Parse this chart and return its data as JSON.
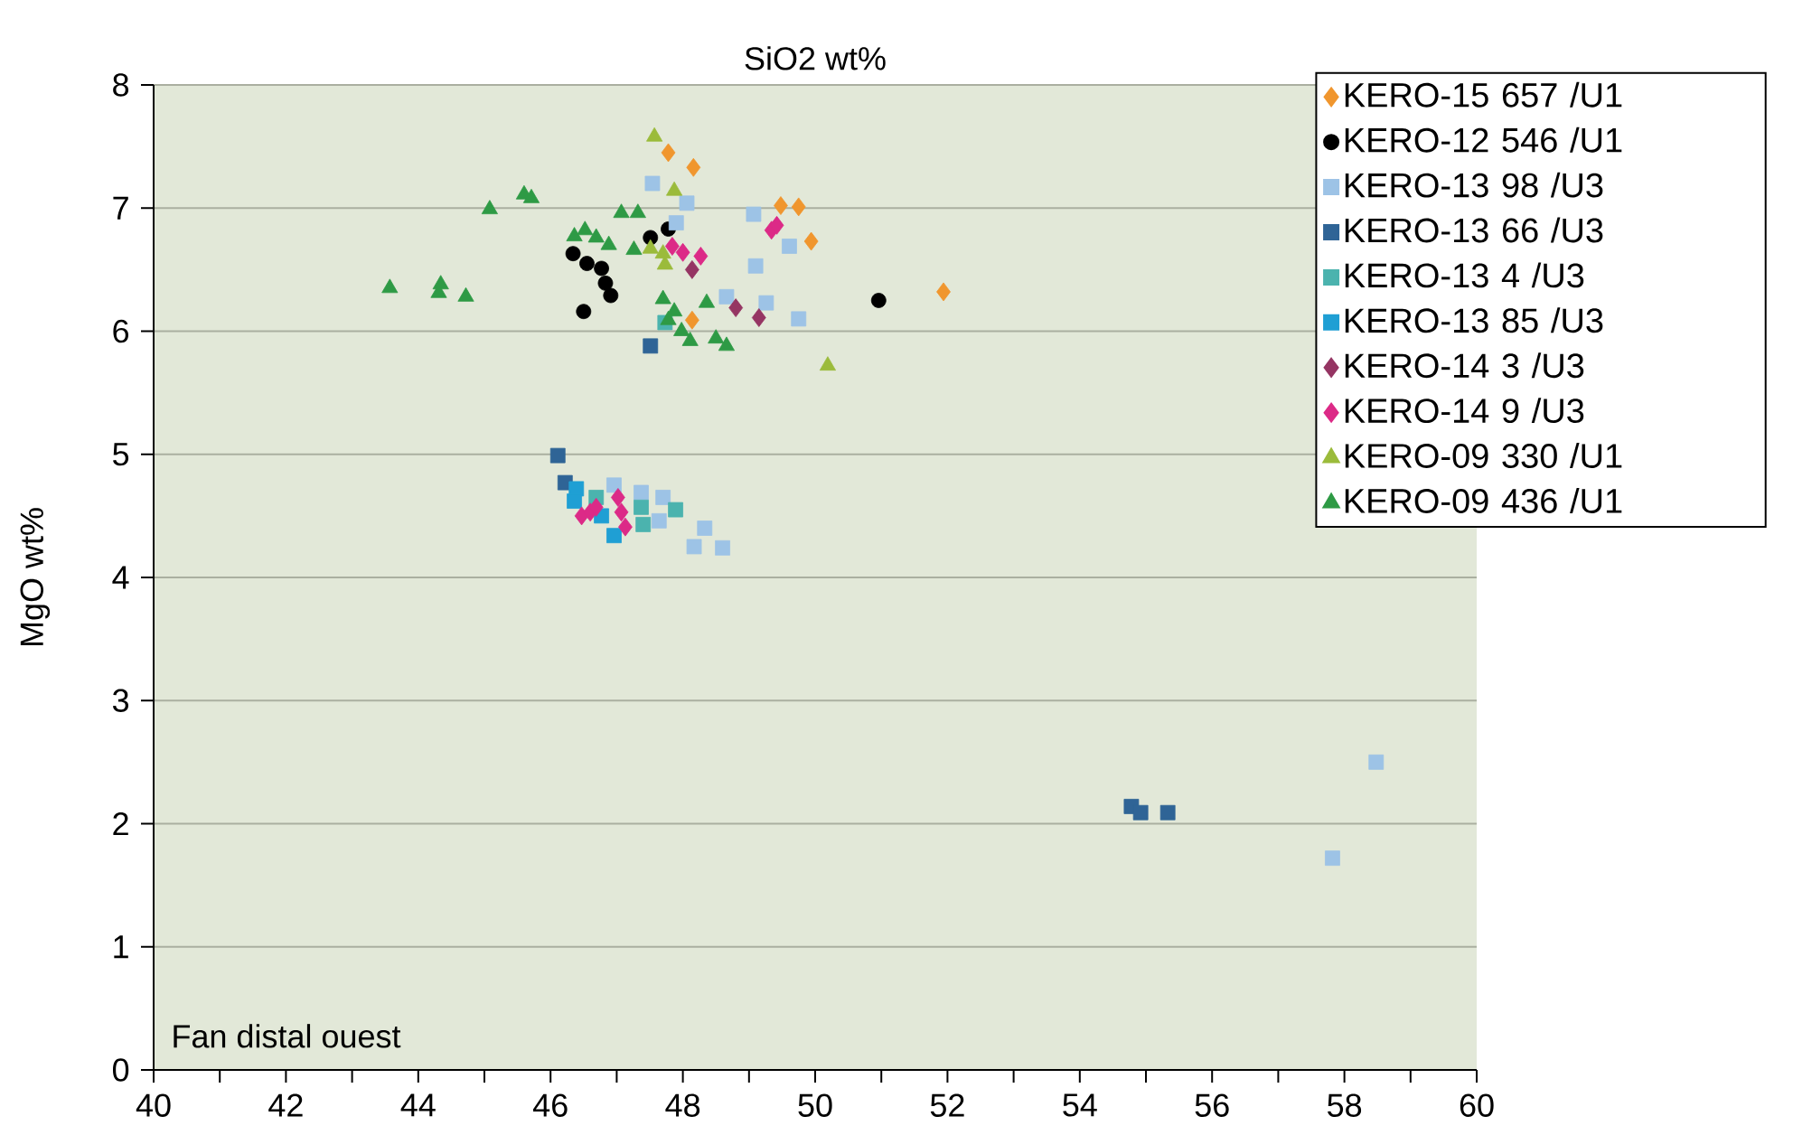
{
  "chart_data": {
    "type": "scatter",
    "xlabel": "SiO2 wt%",
    "ylabel": "MgO wt%",
    "annotations": [
      "Fan distal ouest"
    ],
    "xlim": [
      40,
      60
    ],
    "ylim": [
      0,
      8
    ],
    "xticks": [
      40,
      {
        "value": 41,
        "label": null
      },
      42,
      {
        "value": 43,
        "label": null
      },
      44,
      {
        "value": 45,
        "label": null
      },
      46,
      {
        "value": 47,
        "label": null
      },
      48,
      {
        "value": 49,
        "label": null
      },
      50,
      {
        "value": 51,
        "label": null
      },
      52,
      {
        "value": 53,
        "label": null
      },
      54,
      {
        "value": 55,
        "label": null
      },
      56,
      {
        "value": 57,
        "label": null
      },
      58,
      {
        "value": 59,
        "label": null
      },
      60
    ],
    "yticks": [
      0,
      1,
      2,
      3,
      4,
      5,
      6,
      7,
      8
    ],
    "grid": "y",
    "legend": "top right",
    "series": [
      {
        "name": "KERO-15 657 /U1",
        "color": "#f0962e",
        "marker": "diamond",
        "x": [
          47.78,
          48.16,
          49.48,
          49.75,
          49.94,
          51.94,
          48.14
        ],
        "values": [
          7.45,
          7.33,
          7.02,
          7.01,
          6.73,
          6.32,
          6.09
        ]
      },
      {
        "name": "KERO-12 546 /U1",
        "color": "#000000",
        "marker": "circle",
        "x": [
          46.34,
          46.55,
          46.77,
          46.83,
          46.91,
          46.5,
          47.51,
          47.78,
          50.96
        ],
        "values": [
          6.63,
          6.55,
          6.51,
          6.39,
          6.29,
          6.16,
          6.76,
          6.83,
          6.25
        ]
      },
      {
        "name": "KERO-13 98 /U3",
        "color": "#9dc3e6",
        "marker": "square",
        "x": [
          47.54,
          48.06,
          47.9,
          49.07,
          49.61,
          49.1,
          48.66,
          49.26,
          49.75,
          46.96,
          47.37,
          47.7,
          47.64,
          48.33,
          48.17,
          48.6,
          57.82,
          58.48
        ],
        "values": [
          7.2,
          7.04,
          6.88,
          6.95,
          6.69,
          6.53,
          6.28,
          6.23,
          6.1,
          4.75,
          4.69,
          4.65,
          4.46,
          4.4,
          4.25,
          4.24,
          1.72,
          2.5
        ]
      },
      {
        "name": "KERO-13 66 /U3",
        "color": "#2f6496",
        "marker": "square",
        "x": [
          47.51,
          46.11,
          46.22,
          54.78,
          54.92,
          55.33
        ],
        "values": [
          5.88,
          4.99,
          4.77,
          2.14,
          2.09,
          2.09
        ]
      },
      {
        "name": "KERO-13 4 /U3",
        "color": "#4bb3ae",
        "marker": "square",
        "x": [
          46.69,
          47.37,
          47.4,
          47.89,
          47.73
        ],
        "values": [
          4.65,
          4.57,
          4.43,
          4.55,
          6.07
        ]
      },
      {
        "name": "KERO-13 85 /U3",
        "color": "#1f9fd4",
        "marker": "square",
        "x": [
          46.39,
          46.36,
          46.77,
          46.96
        ],
        "values": [
          4.72,
          4.62,
          4.5,
          4.34
        ]
      },
      {
        "name": "KERO-14 3 /U3",
        "color": "#953563",
        "marker": "diamond",
        "x": [
          48.14,
          48.8,
          49.15
        ],
        "values": [
          6.5,
          6.19,
          6.11
        ]
      },
      {
        "name": "KERO-14 9 /U3",
        "color": "#dc2a87",
        "marker": "diamond",
        "x": [
          46.47,
          46.6,
          46.69,
          47.02,
          47.07,
          47.13,
          47.84,
          48.0,
          48.27,
          49.34,
          49.42
        ],
        "values": [
          4.5,
          4.53,
          4.57,
          4.65,
          4.53,
          4.41,
          6.69,
          6.64,
          6.61,
          6.82,
          6.86
        ]
      },
      {
        "name": "KERO-09 330 /U1",
        "color": "#9bbb3b",
        "marker": "triangle",
        "x": [
          47.57,
          47.87,
          47.51,
          47.73,
          47.7,
          50.19
        ],
        "values": [
          7.58,
          7.14,
          6.67,
          6.54,
          6.63,
          5.72
        ]
      },
      {
        "name": "KERO-09 436 /U1",
        "color": "#2e9a45",
        "marker": "triangle",
        "x": [
          43.57,
          44.34,
          44.31,
          44.72,
          45.08,
          45.6,
          45.71,
          46.36,
          46.52,
          46.69,
          46.88,
          47.07,
          47.32,
          47.26,
          47.7,
          47.87,
          48.36,
          47.98,
          48.11,
          48.5,
          48.66,
          47.78
        ],
        "values": [
          6.35,
          6.38,
          6.31,
          6.28,
          6.99,
          7.11,
          7.08,
          6.77,
          6.82,
          6.76,
          6.7,
          6.96,
          6.96,
          6.66,
          6.26,
          6.16,
          6.23,
          6.0,
          5.92,
          5.94,
          5.88,
          6.09
        ]
      }
    ]
  }
}
